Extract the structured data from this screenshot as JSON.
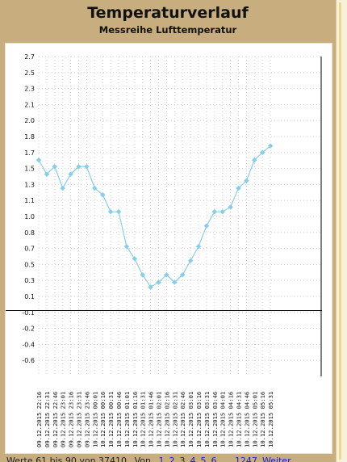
{
  "header": {
    "title": "Temperaturverlauf",
    "subtitle": "Messreihe Lufttemperatur"
  },
  "footer": {
    "status_text": "Werte 61 bis 90 von 37410",
    "pages_label": "Von",
    "page_links": [
      "1",
      "2",
      "3",
      "4",
      "5",
      "6",
      "...",
      "1247",
      "Weiter"
    ]
  },
  "colors": {
    "line": "#87ceeb",
    "marker": "#87ceeb",
    "grid": "#c8c8c8",
    "frame": "#c8ad7f"
  },
  "chart_data": {
    "type": "line",
    "title": "",
    "xlabel": "",
    "ylabel": "",
    "ylim": [
      -0.7,
      2.7
    ],
    "yticks": [
      "2.7",
      "2.5",
      "2.3",
      "2.1",
      "2.0",
      "1.8",
      "1.7",
      "1.5",
      "1.3",
      "1.1",
      "1.0",
      "0.8",
      "0.7",
      "0.5",
      "0.3",
      "0.1",
      "-0.1",
      "-0.2",
      "-0.4",
      "-0.6"
    ],
    "grid": true,
    "x": [
      "09.12.2015 22:16",
      "09.12.2015 22:31",
      "09.12.2015 22:46",
      "09.12.2015 23:01",
      "09.12.2015 23:16",
      "09.12.2015 23:31",
      "09.12.2015 23:46",
      "10.12.2015 00:01",
      "10.12.2015 00:16",
      "10.12.2015 00:31",
      "10.12.2015 00:46",
      "10.12.2015 01:01",
      "10.12.2015 01:16",
      "10.12.2015 01:31",
      "10.12.2015 01:46",
      "10.12.2015 02:01",
      "10.12.2015 02:16",
      "10.12.2015 02:31",
      "10.12.2015 02:46",
      "10.12.2015 03:01",
      "10.12.2015 03:16",
      "10.12.2015 03:31",
      "10.12.2015 03:46",
      "10.12.2015 04:01",
      "10.12.2015 04:16",
      "10.12.2015 04:31",
      "10.12.2015 04:46",
      "10.12.2015 05:01",
      "10.12.2015 05:16",
      "10.12.2015 05:31"
    ],
    "series": [
      {
        "values": [
          1.6,
          1.45,
          1.53,
          1.3,
          1.45,
          1.53,
          1.53,
          1.3,
          1.23,
          1.05,
          1.05,
          0.68,
          0.55,
          0.38,
          0.25,
          0.3,
          0.38,
          0.3,
          0.38,
          0.53,
          0.68,
          0.9,
          1.05,
          1.05,
          1.1,
          1.3,
          1.38,
          1.6,
          1.68,
          1.75
        ]
      }
    ]
  }
}
